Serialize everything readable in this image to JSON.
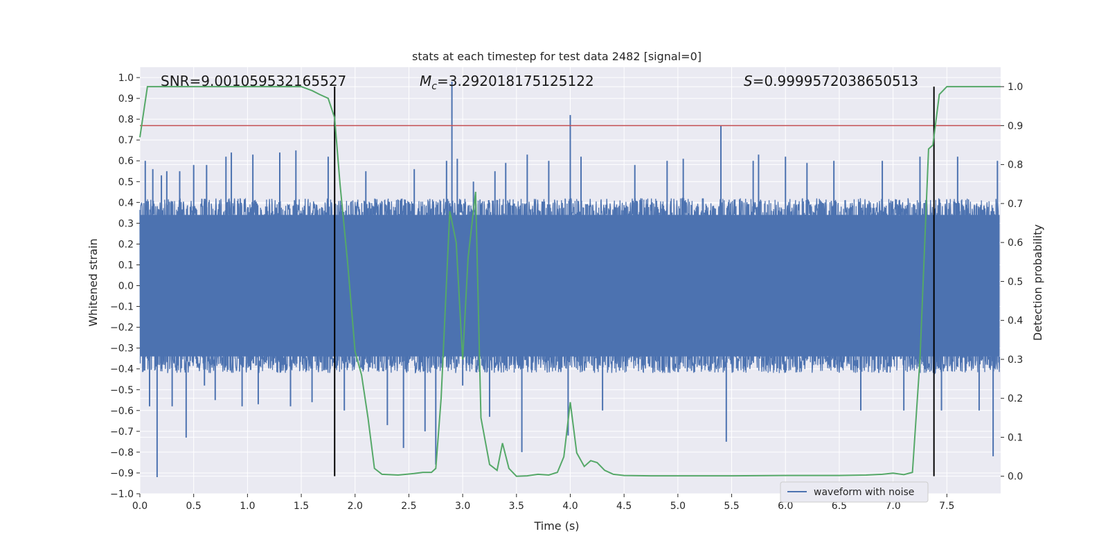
{
  "chart_data": {
    "type": "line",
    "title": "stats at each timestep for test data 2482 [signal=0]",
    "xlabel": "Time (s)",
    "ylabel": "Whitened strain",
    "y2label": "Detection probability",
    "xlim": [
      0.0,
      8.0
    ],
    "ylim": [
      -1.0,
      1.05
    ],
    "y2lim": [
      -0.045,
      1.05
    ],
    "xticks": [
      0.0,
      0.5,
      1.0,
      1.5,
      2.0,
      2.5,
      3.0,
      3.5,
      4.0,
      4.5,
      5.0,
      5.5,
      6.0,
      6.5,
      7.0,
      7.5
    ],
    "yticks": [
      -1.0,
      -0.9,
      -0.8,
      -0.7,
      -0.6,
      -0.5,
      -0.4,
      -0.3,
      -0.2,
      -0.1,
      0.0,
      0.1,
      0.2,
      0.3,
      0.4,
      0.5,
      0.6,
      0.7,
      0.8,
      0.9,
      1.0
    ],
    "y2ticks": [
      0.0,
      0.1,
      0.2,
      0.3,
      0.4,
      0.5,
      0.6,
      0.7,
      0.8,
      0.9,
      1.0
    ],
    "grid": true,
    "legend_position": "bottom-right",
    "annotations": {
      "snr": "SNR=9.001059532165527",
      "mc_symbol": "M",
      "mc_sub": "c",
      "mc_value": "=3.292018175125122",
      "s_symbol": "S",
      "s_value": "=0.9999572038650513"
    },
    "threshold_y2": 0.9,
    "vertical_markers_x": [
      1.81,
      7.38
    ],
    "series": [
      {
        "name": "waveform with noise",
        "axis": "left",
        "color": "#4c72b0",
        "style": "noise",
        "t_range": [
          0.0,
          7.99
        ],
        "envelope": 0.34,
        "spikes": [
          [
            0.02,
            0.29
          ],
          [
            0.05,
            0.6
          ],
          [
            0.09,
            -0.58
          ],
          [
            0.12,
            0.56
          ],
          [
            0.16,
            -0.92
          ],
          [
            0.2,
            0.53
          ],
          [
            0.25,
            0.55
          ],
          [
            0.3,
            -0.58
          ],
          [
            0.37,
            0.55
          ],
          [
            0.43,
            -0.73
          ],
          [
            0.5,
            0.58
          ],
          [
            0.6,
            -0.48
          ],
          [
            0.62,
            0.58
          ],
          [
            0.7,
            -0.55
          ],
          [
            0.8,
            0.62
          ],
          [
            0.85,
            0.64
          ],
          [
            0.95,
            -0.58
          ],
          [
            1.05,
            0.63
          ],
          [
            1.1,
            -0.57
          ],
          [
            1.3,
            0.64
          ],
          [
            1.4,
            -0.58
          ],
          [
            1.45,
            0.65
          ],
          [
            1.6,
            -0.56
          ],
          [
            1.75,
            0.62
          ],
          [
            1.9,
            -0.6
          ],
          [
            2.1,
            0.55
          ],
          [
            2.3,
            -0.67
          ],
          [
            2.45,
            -0.78
          ],
          [
            2.55,
            0.56
          ],
          [
            2.65,
            -0.7
          ],
          [
            2.75,
            -0.86
          ],
          [
            2.85,
            0.6
          ],
          [
            2.9,
            0.98
          ],
          [
            2.95,
            0.61
          ],
          [
            3.0,
            -0.48
          ],
          [
            3.1,
            0.5
          ],
          [
            3.25,
            -0.63
          ],
          [
            3.3,
            0.55
          ],
          [
            3.4,
            0.59
          ],
          [
            3.55,
            -0.8
          ],
          [
            3.6,
            0.63
          ],
          [
            3.8,
            0.6
          ],
          [
            3.98,
            -0.72
          ],
          [
            4.0,
            0.82
          ],
          [
            4.1,
            0.62
          ],
          [
            4.3,
            -0.6
          ],
          [
            4.6,
            0.58
          ],
          [
            4.9,
            0.6
          ],
          [
            5.05,
            0.61
          ],
          [
            5.4,
            0.77
          ],
          [
            5.45,
            -0.75
          ],
          [
            5.7,
            0.6
          ],
          [
            5.75,
            0.63
          ],
          [
            6.0,
            0.62
          ],
          [
            6.2,
            0.59
          ],
          [
            6.45,
            0.6
          ],
          [
            6.7,
            -0.6
          ],
          [
            6.9,
            0.6
          ],
          [
            7.1,
            -0.6
          ],
          [
            7.25,
            0.62
          ],
          [
            7.45,
            -0.6
          ],
          [
            7.6,
            0.62
          ],
          [
            7.8,
            -0.6
          ],
          [
            7.93,
            -0.82
          ],
          [
            7.97,
            0.6
          ]
        ]
      },
      {
        "name": "",
        "axis": "right",
        "color": "#55a868",
        "x": [
          0.0,
          0.07,
          0.13,
          0.3,
          0.5,
          1.0,
          1.5,
          1.6,
          1.67,
          1.75,
          1.81,
          1.86,
          1.93,
          2.0,
          2.06,
          2.12,
          2.18,
          2.25,
          2.4,
          2.55,
          2.63,
          2.71,
          2.75,
          2.8,
          2.88,
          2.94,
          3.0,
          3.05,
          3.12,
          3.17,
          3.25,
          3.32,
          3.37,
          3.43,
          3.5,
          3.6,
          3.7,
          3.8,
          3.88,
          3.94,
          4.0,
          4.06,
          4.13,
          4.19,
          4.25,
          4.32,
          4.4,
          4.5,
          4.75,
          5.0,
          5.5,
          6.0,
          6.5,
          6.75,
          6.9,
          7.0,
          7.1,
          7.18,
          7.25,
          7.33,
          7.37,
          7.43,
          7.5,
          7.6,
          7.75,
          8.0
        ],
        "y": [
          0.87,
          1.0,
          1.0,
          1.0,
          1.0,
          1.0,
          1.0,
          0.99,
          0.98,
          0.97,
          0.92,
          0.75,
          0.55,
          0.32,
          0.26,
          0.15,
          0.02,
          0.005,
          0.003,
          0.007,
          0.01,
          0.01,
          0.02,
          0.2,
          0.68,
          0.6,
          0.3,
          0.56,
          0.73,
          0.15,
          0.03,
          0.015,
          0.085,
          0.02,
          0.0,
          0.001,
          0.005,
          0.003,
          0.01,
          0.05,
          0.19,
          0.06,
          0.025,
          0.04,
          0.035,
          0.015,
          0.005,
          0.002,
          0.001,
          0.001,
          0.001,
          0.002,
          0.002,
          0.003,
          0.005,
          0.008,
          0.004,
          0.01,
          0.3,
          0.84,
          0.85,
          0.98,
          1.0,
          1.0,
          1.0,
          1.0
        ]
      }
    ]
  },
  "colors": {
    "plot_bg": "#eaeaf2",
    "grid": "#ffffff",
    "threshold": "#c44e52",
    "marker": "#000000"
  }
}
